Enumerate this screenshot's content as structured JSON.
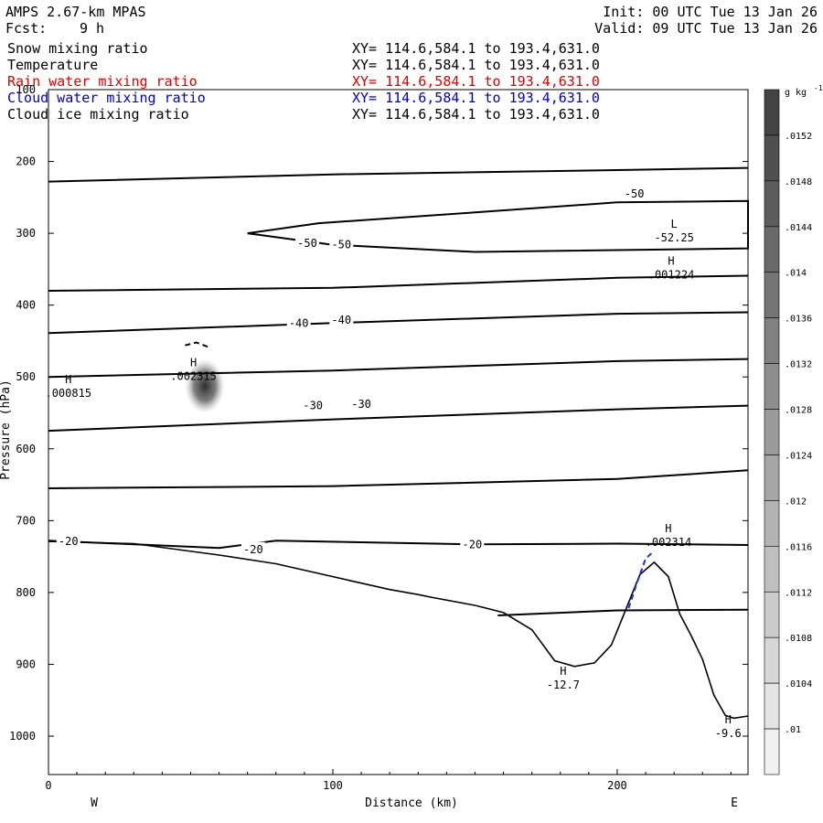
{
  "header": {
    "model": "AMPS 2.67-km MPAS",
    "fcst_label": "Fcst:",
    "fcst_value": "9 h",
    "init": "Init: 00 UTC Tue 13 Jan 26",
    "valid": "Valid: 09 UTC Tue 13 Jan 26"
  },
  "fields": [
    {
      "name": "Snow mixing ratio",
      "xy": "XY= 114.6,584.1 to 193.4,631.0",
      "color": "#000000"
    },
    {
      "name": "Temperature",
      "xy": "XY= 114.6,584.1 to 193.4,631.0",
      "color": "#000000"
    },
    {
      "name": "Rain water mixing ratio",
      "xy": "XY= 114.6,584.1 to 193.4,631.0",
      "color": "#e00000"
    },
    {
      "name": "Cloud water mixing ratio",
      "xy": "XY= 114.6,584.1 to 193.4,631.0",
      "color": "#0000cc"
    },
    {
      "name": "Cloud ice mixing ratio",
      "xy": "XY= 114.6,584.1 to 193.4,631.0",
      "color": "#000000"
    }
  ],
  "chart_data": {
    "type": "cross-section contour",
    "xlabel": "Distance (km)",
    "ylabel": "Pressure (hPa)",
    "xlim": [
      0,
      246
    ],
    "ylim": [
      1050,
      100
    ],
    "x_ticks": [
      0,
      100,
      200
    ],
    "y_ticks": [
      100,
      200,
      300,
      400,
      500,
      600,
      700,
      800,
      900,
      1000
    ],
    "left_end": "W",
    "right_end": "E",
    "colorbar": {
      "unit": "g kg",
      "unit_exp": "-1",
      "labels": [
        ".0152",
        ".0148",
        ".0144",
        ".014",
        ".0136",
        ".0132",
        ".0128",
        ".0124",
        ".012",
        ".0116",
        ".0112",
        ".0108",
        ".0104",
        ".01"
      ]
    },
    "contour_labels": [
      {
        "text": "-50",
        "x": 206,
        "y": 245
      },
      {
        "text": "-50",
        "x": 91,
        "y": 314
      },
      {
        "text": "-50",
        "x": 103,
        "y": 316
      },
      {
        "text": "-40",
        "x": 88,
        "y": 425
      },
      {
        "text": "-40",
        "x": 103,
        "y": 421
      },
      {
        "text": "-30",
        "x": 93,
        "y": 540
      },
      {
        "text": "-30",
        "x": 110,
        "y": 538
      },
      {
        "text": "-20",
        "x": 7,
        "y": 729
      },
      {
        "text": "-20",
        "x": 72,
        "y": 740
      },
      {
        "text": "-20",
        "x": 149,
        "y": 733
      }
    ],
    "extrema": [
      {
        "mark": "L",
        "value": "-52.25",
        "x": 220,
        "y": 297
      },
      {
        "mark": "H",
        "value": ".001224",
        "x": 219,
        "y": 349
      },
      {
        "mark": "H",
        "value": ".000815",
        "x": 7,
        "y": 514
      },
      {
        "mark": "H",
        "value": ".002315",
        "x": 51,
        "y": 490
      },
      {
        "mark": "H",
        "value": ".002314",
        "x": 218,
        "y": 721
      },
      {
        "mark": "H",
        "value": "-12.7",
        "x": 181,
        "y": 920
      },
      {
        "mark": "H",
        "value": "-9.6",
        "x": 239,
        "y": 987
      }
    ],
    "temperature_isotherms": [
      {
        "pts": [
          [
            0,
            228
          ],
          [
            100,
            218
          ],
          [
            200,
            212
          ],
          [
            246,
            209
          ]
        ]
      },
      {
        "pts": [
          [
            70,
            300
          ],
          [
            95,
            286
          ],
          [
            150,
            271
          ],
          [
            200,
            257
          ],
          [
            246,
            255
          ],
          [
            246,
            321
          ],
          [
            150,
            326
          ],
          [
            100,
            316
          ],
          [
            70,
            300
          ]
        ]
      },
      {
        "pts": [
          [
            0,
            380
          ],
          [
            100,
            376
          ],
          [
            200,
            362
          ],
          [
            246,
            359
          ]
        ]
      },
      {
        "pts": [
          [
            0,
            439
          ],
          [
            100,
            425
          ],
          [
            200,
            412
          ],
          [
            246,
            410
          ]
        ]
      },
      {
        "pts": [
          [
            0,
            500
          ],
          [
            100,
            491
          ],
          [
            200,
            478
          ],
          [
            246,
            475
          ]
        ]
      },
      {
        "pts": [
          [
            0,
            575
          ],
          [
            100,
            559
          ],
          [
            200,
            545
          ],
          [
            246,
            540
          ]
        ]
      },
      {
        "pts": [
          [
            0,
            655
          ],
          [
            100,
            652
          ],
          [
            200,
            642
          ],
          [
            246,
            630
          ]
        ]
      },
      {
        "pts": [
          [
            0,
            728
          ],
          [
            60,
            738
          ],
          [
            80,
            728
          ],
          [
            150,
            733
          ],
          [
            200,
            732
          ],
          [
            246,
            734
          ]
        ]
      },
      {
        "pts": [
          [
            158,
            832
          ],
          [
            200,
            825
          ],
          [
            246,
            824
          ]
        ]
      }
    ],
    "terrain": [
      [
        0,
        729
      ],
      [
        30,
        732
      ],
      [
        60,
        748
      ],
      [
        80,
        760
      ],
      [
        110,
        787
      ],
      [
        120,
        796
      ],
      [
        130,
        803
      ],
      [
        135,
        807
      ],
      [
        150,
        818
      ],
      [
        160,
        828
      ],
      [
        170,
        852
      ],
      [
        178,
        895
      ],
      [
        185,
        903
      ],
      [
        192,
        898
      ],
      [
        198,
        873
      ],
      [
        203,
        824
      ],
      [
        208,
        775
      ],
      [
        213,
        758
      ],
      [
        218,
        778
      ],
      [
        222,
        830
      ],
      [
        226,
        860
      ],
      [
        230,
        893
      ],
      [
        234,
        943
      ],
      [
        238,
        971
      ],
      [
        241,
        975
      ],
      [
        246,
        972
      ]
    ],
    "cloud_water_contour": [
      [
        204,
        822
      ],
      [
        207,
        786
      ],
      [
        210,
        753
      ],
      [
        213,
        742
      ]
    ],
    "cloud_ice_contour": [
      [
        56,
        458
      ],
      [
        52,
        452
      ],
      [
        48,
        456
      ]
    ],
    "snow_blob": {
      "x": 55,
      "y": 513,
      "rx_km": 7,
      "ry_hpa": 38,
      "color": "#333333"
    }
  }
}
